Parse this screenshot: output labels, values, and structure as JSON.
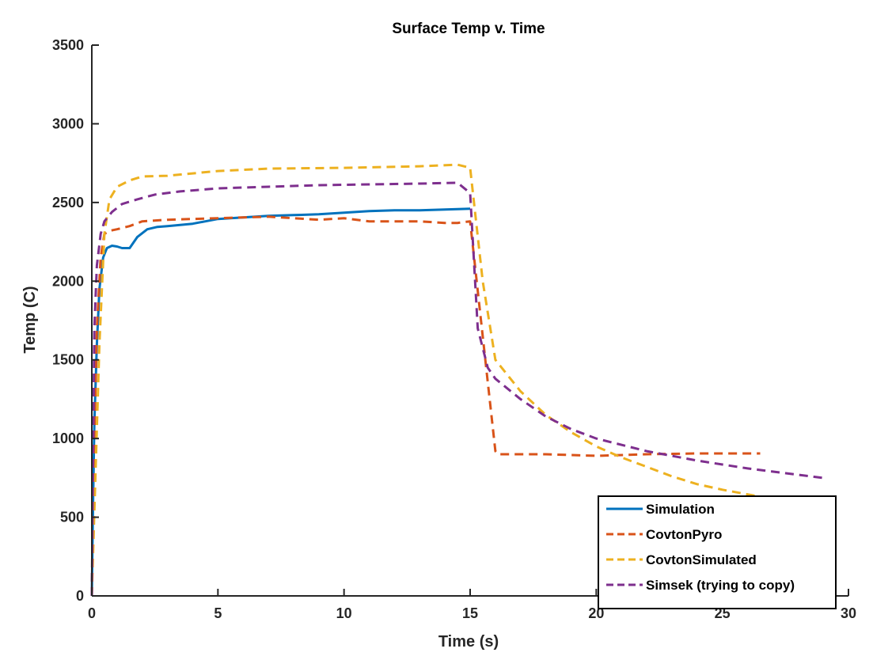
{
  "chart_data": {
    "type": "line",
    "title": "Surface Temp v. Time",
    "xlabel": "Time (s)",
    "ylabel": "Temp (C)",
    "xlim": [
      0,
      30
    ],
    "ylim": [
      0,
      3500
    ],
    "xticks": [
      "0",
      "5",
      "10",
      "15",
      "20",
      "25",
      "30"
    ],
    "yticks": [
      "0",
      "500",
      "1000",
      "1500",
      "2000",
      "2500",
      "3000",
      "3500"
    ],
    "grid": false,
    "legend_position": "bottom-right",
    "series": [
      {
        "name": "Simulation",
        "color": "#0072BD",
        "style": "solid",
        "x": [
          0,
          0.05,
          0.1,
          0.2,
          0.3,
          0.45,
          0.6,
          0.8,
          1.0,
          1.2,
          1.5,
          1.8,
          2.2,
          2.6,
          3.0,
          4.0,
          5.0,
          6.0,
          7.0,
          8.0,
          9.0,
          10.0,
          11.0,
          12.0,
          13.0,
          14.0,
          15.0
        ],
        "y": [
          0,
          600,
          1100,
          1600,
          1950,
          2150,
          2210,
          2225,
          2220,
          2210,
          2210,
          2280,
          2330,
          2345,
          2350,
          2365,
          2395,
          2405,
          2415,
          2420,
          2425,
          2435,
          2445,
          2450,
          2450,
          2455,
          2460
        ]
      },
      {
        "name": "CovtonPyro",
        "color": "#D95319",
        "style": "dashed",
        "x": [
          0,
          0.1,
          0.2,
          0.35,
          0.5,
          0.7,
          1.0,
          1.5,
          2.0,
          3.0,
          5.0,
          7.0,
          9.0,
          10.0,
          11.0,
          12.0,
          13.0,
          14.0,
          14.5,
          15.0,
          15.5,
          16.0,
          16.1,
          18.0,
          20.0,
          22.0,
          24.0,
          26.5
        ],
        "y": [
          0,
          1000,
          1700,
          2150,
          2300,
          2320,
          2330,
          2350,
          2380,
          2390,
          2400,
          2410,
          2390,
          2400,
          2380,
          2380,
          2380,
          2370,
          2370,
          2380,
          1650,
          920,
          900,
          900,
          890,
          900,
          905,
          905
        ]
      },
      {
        "name": "CovtonSimulated",
        "color": "#EDB120",
        "style": "dashed",
        "x": [
          0,
          0.15,
          0.3,
          0.5,
          0.7,
          1.0,
          1.5,
          2.0,
          3.0,
          5.0,
          7.0,
          10.0,
          13.0,
          14.5,
          15.0,
          15.5,
          16.0,
          17.0,
          18.0,
          19.0,
          20.0,
          21.0,
          22.0,
          23.0,
          24.0,
          25.0,
          26.0,
          26.5
        ],
        "y": [
          0,
          800,
          1600,
          2300,
          2520,
          2600,
          2640,
          2665,
          2670,
          2700,
          2715,
          2720,
          2730,
          2740,
          2720,
          2000,
          1500,
          1300,
          1150,
          1040,
          950,
          880,
          820,
          760,
          710,
          675,
          645,
          630
        ]
      },
      {
        "name": "Simsek (trying to copy)",
        "color": "#7E2F8E",
        "style": "dashed",
        "x": [
          0,
          0.1,
          0.2,
          0.35,
          0.5,
          0.8,
          1.2,
          1.8,
          2.5,
          3.5,
          5.0,
          7.0,
          9.0,
          11.0,
          13.0,
          14.5,
          15.0,
          15.3,
          15.7,
          16.0,
          17.0,
          18.0,
          19.0,
          20.0,
          22.0,
          24.0,
          26.0,
          29.0
        ],
        "y": [
          0,
          1700,
          2100,
          2300,
          2380,
          2440,
          2490,
          2520,
          2550,
          2570,
          2590,
          2600,
          2610,
          2615,
          2620,
          2625,
          2560,
          1700,
          1450,
          1380,
          1250,
          1140,
          1060,
          1000,
          920,
          860,
          810,
          750
        ]
      }
    ]
  }
}
